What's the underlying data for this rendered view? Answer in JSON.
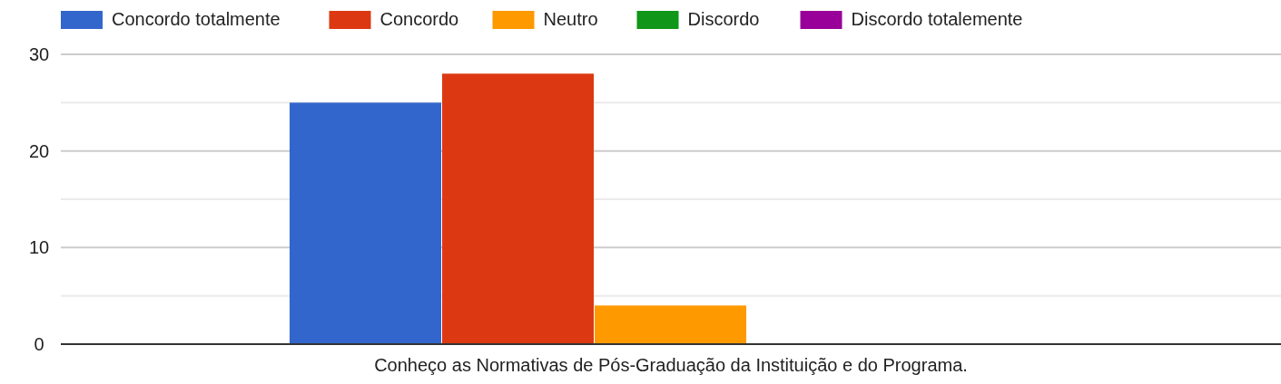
{
  "chart_data": {
    "type": "bar",
    "categories": [
      "Conheço as Normativas de Pós-Graduação da Instituição e do Programa."
    ],
    "series": [
      {
        "name": "Concordo totalmente",
        "color": "#3366cc",
        "values": [
          25
        ]
      },
      {
        "name": "Concordo",
        "color": "#dc3912",
        "values": [
          28
        ]
      },
      {
        "name": "Neutro",
        "color": "#ff9900",
        "values": [
          4
        ]
      },
      {
        "name": "Discordo",
        "color": "#109618",
        "values": [
          0
        ]
      },
      {
        "name": "Discordo totalemente",
        "color": "#990099",
        "values": [
          0
        ]
      }
    ],
    "ylim": [
      0,
      30
    ],
    "yticks": [
      0,
      {
        "value": 5,
        "label": null
      },
      10,
      {
        "value": 15,
        "label": null
      },
      20,
      {
        "value": 25,
        "label": null
      },
      30
    ],
    "grid": "y",
    "legend": "top"
  }
}
